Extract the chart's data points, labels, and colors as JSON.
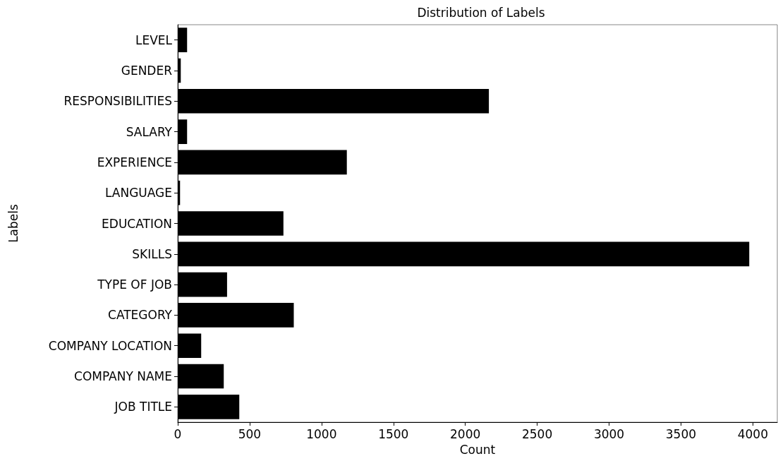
{
  "chart_data": {
    "type": "bar",
    "orientation": "horizontal",
    "title": "Distribution of Labels",
    "xlabel": "Count",
    "ylabel": "Labels",
    "categories": [
      "LEVEL",
      "GENDER",
      "RESPONSIBILITIES",
      "SALARY",
      "EXPERIENCE",
      "LANGUAGE",
      "EDUCATION",
      "SKILLS",
      "TYPE OF JOB",
      "CATEGORY",
      "COMPANY LOCATION",
      "COMPANY NAME",
      "JOB TITLE"
    ],
    "values": [
      65,
      21,
      2164,
      65,
      1176,
      16,
      735,
      3975,
      343,
      807,
      163,
      320,
      428
    ],
    "color": "#000000",
    "xlim": [
      0,
      4170
    ],
    "xticks": [
      0,
      500,
      1000,
      1500,
      2000,
      2500,
      3000,
      3500,
      4000
    ],
    "grid": false
  }
}
